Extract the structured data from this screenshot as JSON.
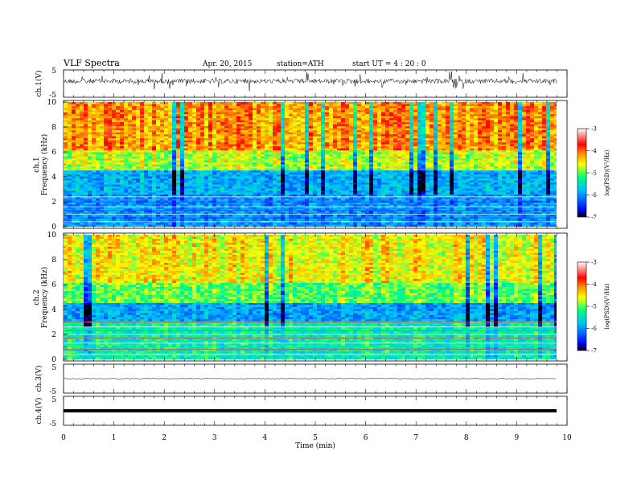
{
  "header": {
    "title": "VLF  Spectra",
    "date": "Apr. 20, 2015",
    "station": "station=ATH",
    "start": "start  UT  =   4  : 20 : 0"
  },
  "chart_data": [
    {
      "type": "line",
      "panel": "ch1-waveform",
      "ylabel": "ch.1(V)",
      "yticks": [
        "5",
        "-5"
      ],
      "ylim": [
        -5,
        5
      ],
      "xlim": [
        0,
        10
      ]
    },
    {
      "type": "heatmap",
      "panel": "ch1-spectrogram",
      "ylabel": "Frequency  (kHz)",
      "ylabel2": "ch.1",
      "yticks": [
        "0",
        "2",
        "4",
        "6",
        "8",
        "10"
      ],
      "ylim": [
        0,
        10
      ],
      "xlim": [
        0,
        9.8
      ],
      "colorbar": {
        "label": "log(PSD)(V²/Hz)",
        "ticks": [
          "-3",
          "-4",
          "-5",
          "-6",
          "-7"
        ],
        "range": [
          -7,
          -3
        ]
      }
    },
    {
      "type": "heatmap",
      "panel": "ch2-spectrogram",
      "ylabel": "Frequency  (kHz)",
      "ylabel2": "ch.2",
      "yticks": [
        "0",
        "2",
        "4",
        "6",
        "8",
        "10"
      ],
      "ylim": [
        0,
        10
      ],
      "xlim": [
        0,
        9.8
      ],
      "colorbar": {
        "label": "log(PSD)(V²/Hz)",
        "ticks": [
          "-3",
          "-4",
          "-5",
          "-6",
          "-7"
        ],
        "range": [
          -7,
          -3
        ]
      }
    },
    {
      "type": "line",
      "panel": "ch3-waveform",
      "ylabel": "ch.3(V)",
      "yticks": [
        "5",
        "-5"
      ],
      "ylim": [
        -5,
        5
      ],
      "xlim": [
        0,
        10
      ]
    },
    {
      "type": "line",
      "panel": "ch4-waveform",
      "ylabel": "ch.4(V)",
      "yticks": [
        "5",
        "-5"
      ],
      "ylim": [
        -5,
        5
      ],
      "xlim": [
        0,
        10
      ]
    }
  ],
  "xaxis": {
    "label": "Time  (min)",
    "ticks": [
      "0",
      "1",
      "2",
      "3",
      "4",
      "5",
      "6",
      "7",
      "8",
      "9",
      "10"
    ],
    "range": [
      0,
      10
    ]
  }
}
